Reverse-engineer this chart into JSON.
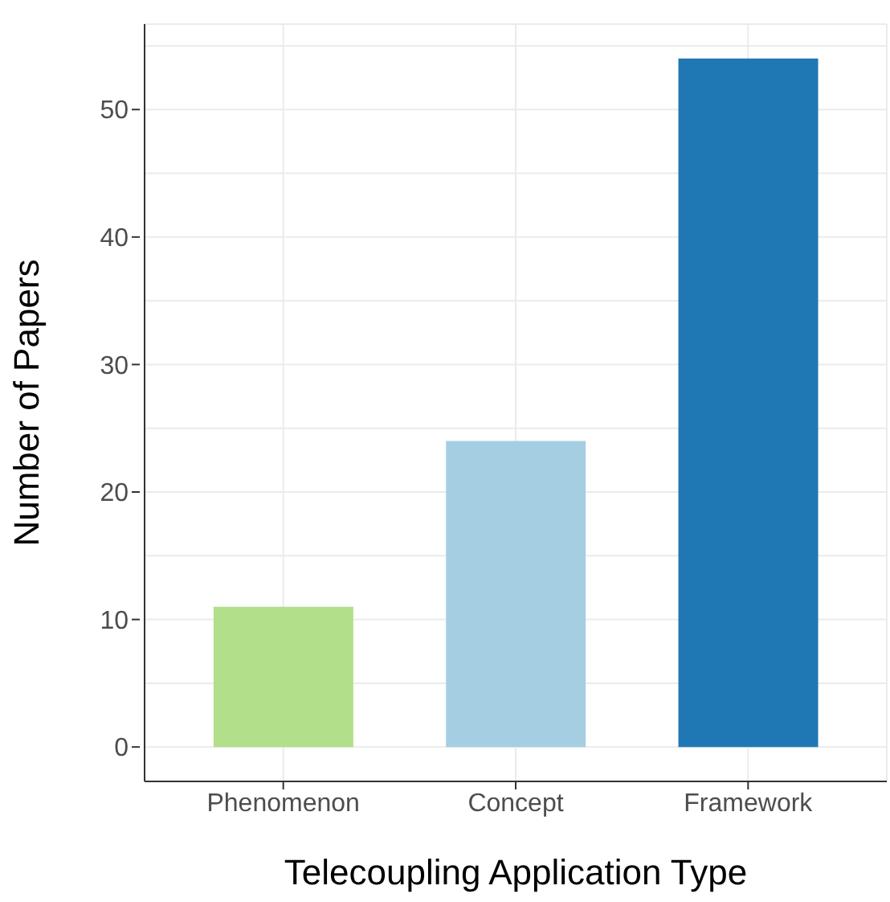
{
  "chart_data": {
    "type": "bar",
    "xlabel": "Telecoupling Application Type",
    "ylabel": "Number of Papers",
    "categories": [
      "Phenomenon",
      "Concept",
      "Framework"
    ],
    "values": [
      11,
      24,
      54
    ],
    "colors": [
      "#b2df8a",
      "#a6cee3",
      "#1f78b4"
    ],
    "ylim": [
      -2.7,
      56.7
    ],
    "yticks": [
      0,
      {
        "value": 5,
        "label": null
      },
      10,
      {
        "value": 15,
        "label": null
      },
      20,
      {
        "value": 25,
        "label": null
      },
      30,
      {
        "value": 35,
        "label": null
      },
      40,
      {
        "value": 45,
        "label": null
      },
      50,
      {
        "value": 55,
        "label": null
      }
    ],
    "grid": true
  }
}
